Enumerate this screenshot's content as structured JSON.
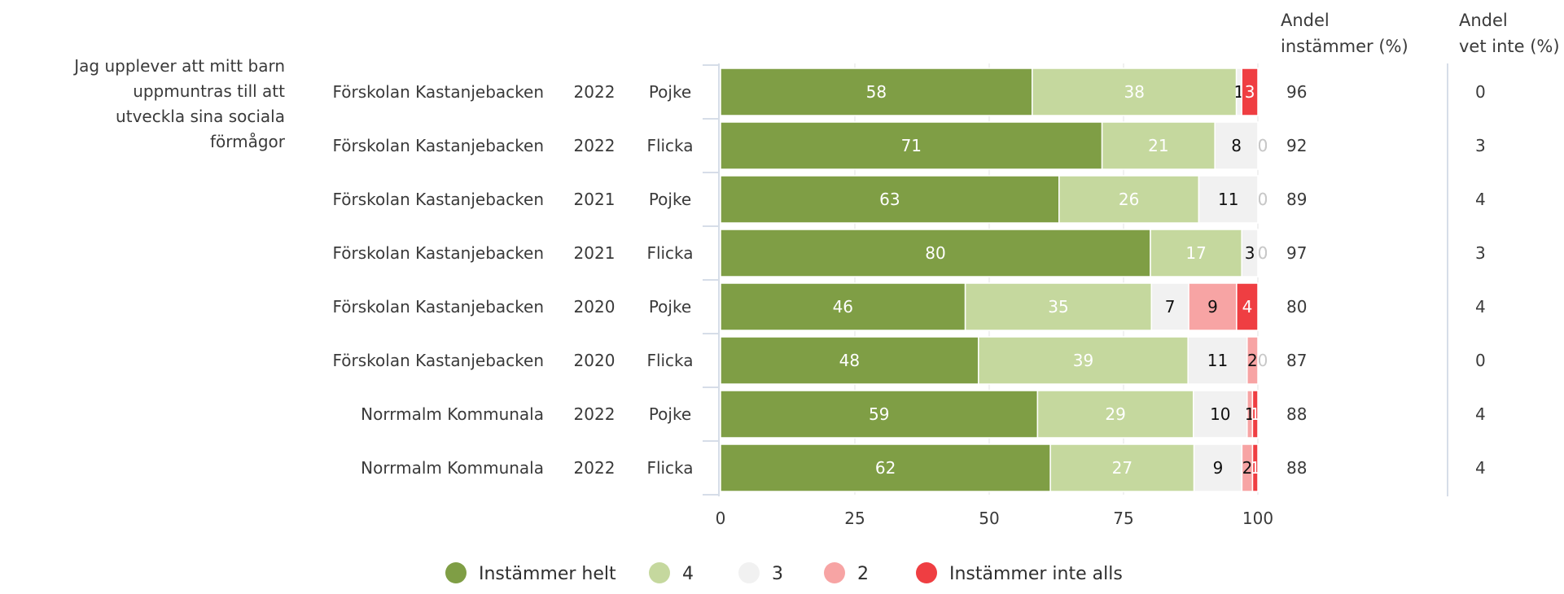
{
  "chart_data": {
    "type": "bar",
    "orientation": "horizontal",
    "stacked": true,
    "question": "Jag upplever att mitt barn uppmuntras till att utveckla sina sociala förmågor",
    "columns": {
      "agree": "Andel instämmer (%)",
      "dont_know": "Andel vet inte (%)"
    },
    "rows": [
      {
        "unit": "Förskolan Kastanjebacken",
        "year": "2022",
        "gender": "Pojke",
        "values": [
          58,
          38,
          1,
          0,
          3
        ],
        "agree": "96",
        "dont_know": "0"
      },
      {
        "unit": "Förskolan Kastanjebacken",
        "year": "2022",
        "gender": "Flicka",
        "values": [
          71,
          21,
          8,
          0,
          0
        ],
        "agree": "92",
        "dont_know": "3"
      },
      {
        "unit": "Förskolan Kastanjebacken",
        "year": "2021",
        "gender": "Pojke",
        "values": [
          63,
          26,
          11,
          0,
          0
        ],
        "agree": "89",
        "dont_know": "4"
      },
      {
        "unit": "Förskolan Kastanjebacken",
        "year": "2021",
        "gender": "Flicka",
        "values": [
          80,
          17,
          3,
          0,
          0
        ],
        "agree": "97",
        "dont_know": "3"
      },
      {
        "unit": "Förskolan Kastanjebacken",
        "year": "2020",
        "gender": "Pojke",
        "values": [
          46,
          35,
          7,
          9,
          4
        ],
        "agree": "80",
        "dont_know": "4"
      },
      {
        "unit": "Förskolan Kastanjebacken",
        "year": "2020",
        "gender": "Flicka",
        "values": [
          48,
          39,
          11,
          2,
          0
        ],
        "agree": "87",
        "dont_know": "0"
      },
      {
        "unit": "Norrmalm Kommunala",
        "year": "2022",
        "gender": "Pojke",
        "values": [
          59,
          29,
          10,
          1,
          1
        ],
        "agree": "88",
        "dont_know": "4"
      },
      {
        "unit": "Norrmalm Kommunala",
        "year": "2022",
        "gender": "Flicka",
        "values": [
          62,
          27,
          9,
          2,
          1
        ],
        "agree": "88",
        "dont_know": "4"
      }
    ],
    "series": [
      {
        "name": "Instämmer helt",
        "color": "#7f9e45"
      },
      {
        "name": "4",
        "color": "#c5d89e"
      },
      {
        "name": "3",
        "color": "#f1f1f1"
      },
      {
        "name": "2",
        "color": "#f7a4a4"
      },
      {
        "name": "Instämmer inte alls",
        "color": "#ef3e42"
      }
    ],
    "segment_label_colors": [
      "#ffffff",
      "#ffffff",
      "#111111",
      "#111111",
      "#ffffff"
    ],
    "x_ticks": [
      "0",
      "25",
      "50",
      "75",
      "100"
    ],
    "xlim": [
      0,
      100
    ],
    "grid": true,
    "legend_position": "bottom"
  }
}
